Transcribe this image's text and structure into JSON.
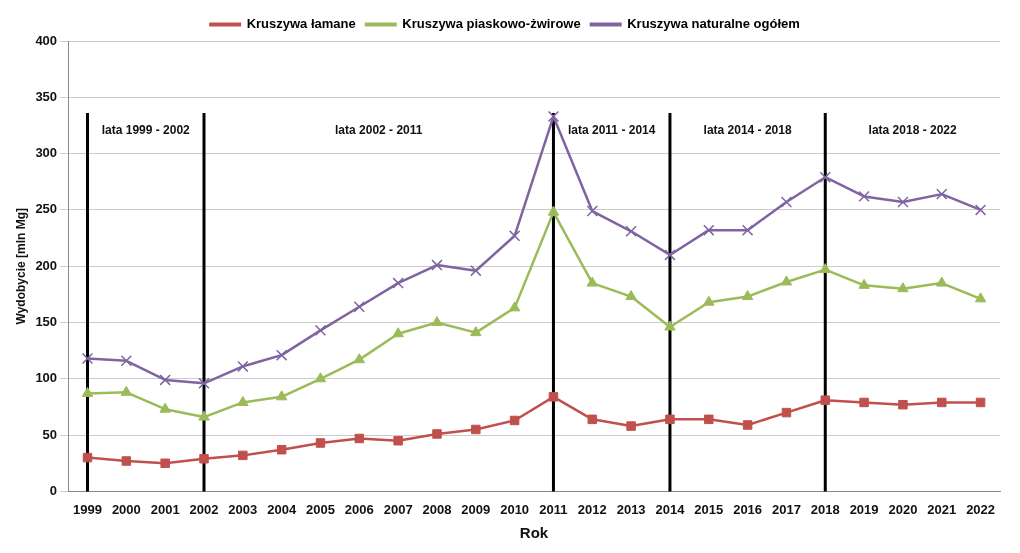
{
  "chart_data": {
    "type": "line",
    "xlabel": "Rok",
    "ylabel": "Wydobycie [mln Mg]",
    "categories": [
      "1999",
      "2000",
      "2001",
      "2002",
      "2003",
      "2004",
      "2005",
      "2006",
      "2007",
      "2008",
      "2009",
      "2010",
      "2011",
      "2012",
      "2013",
      "2014",
      "2015",
      "2016",
      "2017",
      "2018",
      "2019",
      "2020",
      "2021",
      "2022"
    ],
    "series": [
      {
        "name": "Kruszywa łamane",
        "color": "#c0504d",
        "marker": "square",
        "values": [
          30,
          27,
          25,
          29,
          32,
          37,
          43,
          47,
          45,
          51,
          55,
          63,
          84,
          64,
          58,
          64,
          64,
          59,
          70,
          81,
          79,
          77,
          79,
          79
        ]
      },
      {
        "name": "Kruszywa piaskowo-żwirowe",
        "color": "#9bbb59",
        "marker": "triangle",
        "values": [
          87,
          88,
          73,
          66,
          79,
          84,
          100,
          117,
          140,
          150,
          141,
          163,
          248,
          185,
          173,
          146,
          168,
          173,
          186,
          197,
          183,
          180,
          185,
          171
        ]
      },
      {
        "name": "Kruszywa naturalne ogółem",
        "color": "#8064a2",
        "marker": "cross",
        "values": [
          118,
          116,
          99,
          96,
          111,
          121,
          143,
          164,
          185,
          201,
          196,
          227,
          333,
          249,
          231,
          210,
          232,
          232,
          257,
          279,
          262,
          257,
          264,
          250
        ]
      }
    ],
    "ylim": [
      0,
      400
    ],
    "yticks": [
      0,
      50,
      100,
      150,
      200,
      250,
      300,
      350,
      400
    ],
    "grid": "y",
    "legend": "top",
    "line_style": "solid",
    "ref_lines": [
      {
        "axis": "x",
        "value": "1999",
        "color": "#000000"
      },
      {
        "axis": "x",
        "value": "2002",
        "color": "#000000"
      },
      {
        "axis": "x",
        "value": "2011",
        "color": "#000000"
      },
      {
        "axis": "x",
        "value": "2014",
        "color": "#000000"
      },
      {
        "axis": "x",
        "value": "2018",
        "color": "#000000"
      }
    ],
    "annotations": [
      "lata 1999 - 2002",
      "lata 2002 - 2011",
      "lata 2011 - 2014",
      "lata 2014 - 2018",
      "lata 2018 - 2022"
    ]
  }
}
